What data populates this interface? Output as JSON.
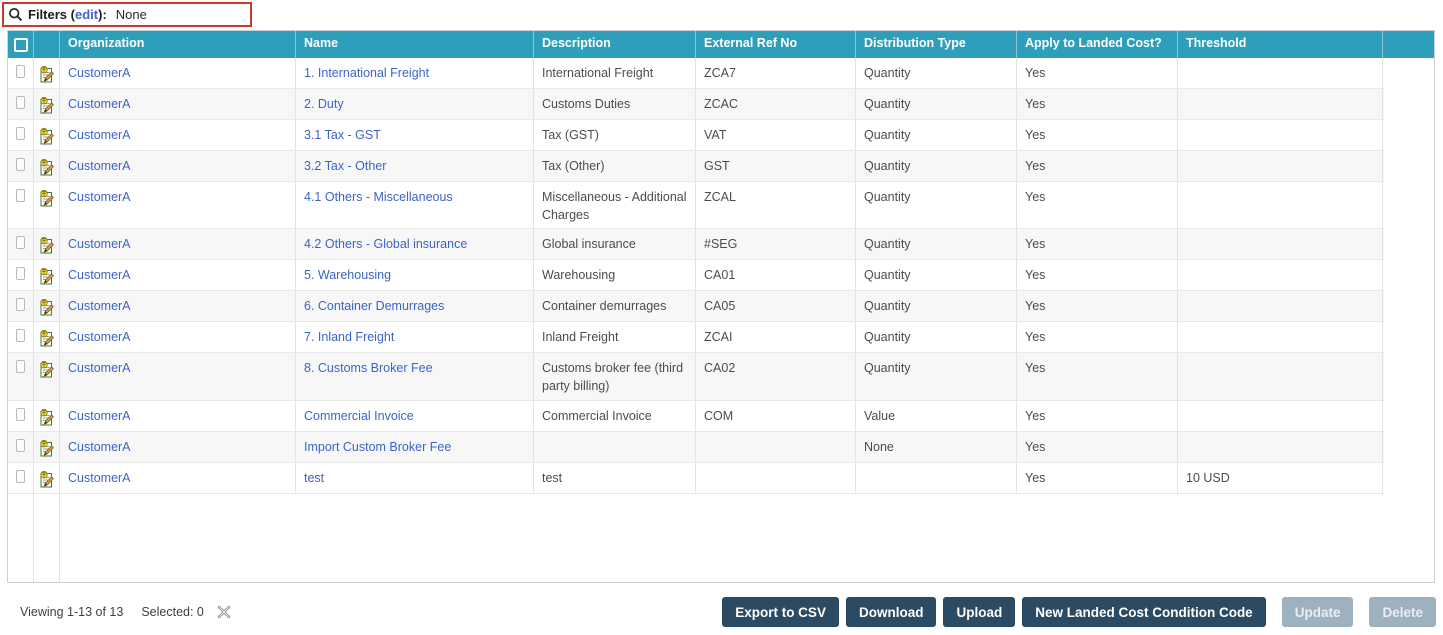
{
  "filter_bar": {
    "label": "Filters",
    "edit_link": "edit",
    "colon": ":",
    "value": "None"
  },
  "table": {
    "headers": {
      "organization": "Organization",
      "name": "Name",
      "description": "Description",
      "external_ref_no": "External Ref No",
      "distribution_type": "Distribution Type",
      "apply_to_landed_cost": "Apply to Landed Cost?",
      "threshold": "Threshold"
    },
    "rows": [
      {
        "organization": "CustomerA",
        "name": "1. International Freight",
        "description": "International Freight",
        "external_ref_no": "ZCA7",
        "distribution_type": "Quantity",
        "apply_to_landed_cost": "Yes",
        "threshold": ""
      },
      {
        "organization": "CustomerA",
        "name": "2. Duty",
        "description": "Customs Duties",
        "external_ref_no": "ZCAC",
        "distribution_type": "Quantity",
        "apply_to_landed_cost": "Yes",
        "threshold": ""
      },
      {
        "organization": "CustomerA",
        "name": "3.1 Tax - GST",
        "description": "Tax (GST)",
        "external_ref_no": "VAT",
        "distribution_type": "Quantity",
        "apply_to_landed_cost": "Yes",
        "threshold": ""
      },
      {
        "organization": "CustomerA",
        "name": "3.2 Tax - Other",
        "description": "Tax (Other)",
        "external_ref_no": "GST",
        "distribution_type": "Quantity",
        "apply_to_landed_cost": "Yes",
        "threshold": ""
      },
      {
        "organization": "CustomerA",
        "name": "4.1 Others - Miscellaneous",
        "description": "Miscellaneous - Additional Charges",
        "external_ref_no": "ZCAL",
        "distribution_type": "Quantity",
        "apply_to_landed_cost": "Yes",
        "threshold": ""
      },
      {
        "organization": "CustomerA",
        "name": "4.2 Others - Global insurance",
        "description": "Global insurance",
        "external_ref_no": "#SEG",
        "distribution_type": "Quantity",
        "apply_to_landed_cost": "Yes",
        "threshold": ""
      },
      {
        "organization": "CustomerA",
        "name": "5. Warehousing",
        "description": "Warehousing",
        "external_ref_no": "CA01",
        "distribution_type": "Quantity",
        "apply_to_landed_cost": "Yes",
        "threshold": ""
      },
      {
        "organization": "CustomerA",
        "name": "6. Container Demurrages",
        "description": "Container demurrages",
        "external_ref_no": "CA05",
        "distribution_type": "Quantity",
        "apply_to_landed_cost": "Yes",
        "threshold": ""
      },
      {
        "organization": "CustomerA",
        "name": "7. Inland Freight",
        "description": "Inland Freight",
        "external_ref_no": "ZCAI",
        "distribution_type": "Quantity",
        "apply_to_landed_cost": "Yes",
        "threshold": ""
      },
      {
        "organization": "CustomerA",
        "name": "8. Customs Broker Fee",
        "description": "Customs broker fee (third party billing)",
        "external_ref_no": "CA02",
        "distribution_type": "Quantity",
        "apply_to_landed_cost": "Yes",
        "threshold": ""
      },
      {
        "organization": "CustomerA",
        "name": "Commercial Invoice",
        "description": "Commercial Invoice",
        "external_ref_no": "COM",
        "distribution_type": "Value",
        "apply_to_landed_cost": "Yes",
        "threshold": ""
      },
      {
        "organization": "CustomerA",
        "name": "Import Custom Broker Fee",
        "description": "",
        "external_ref_no": "",
        "distribution_type": "None",
        "apply_to_landed_cost": "Yes",
        "threshold": ""
      },
      {
        "organization": "CustomerA",
        "name": "test",
        "description": "test",
        "external_ref_no": "",
        "distribution_type": "",
        "apply_to_landed_cost": "Yes",
        "threshold": "10 USD"
      }
    ]
  },
  "footer": {
    "viewing": "Viewing 1-13 of 13",
    "selected": "Selected: 0"
  },
  "action_buttons": [
    {
      "label": "Export to CSV",
      "enabled": true
    },
    {
      "label": "Download",
      "enabled": true
    },
    {
      "label": "Upload",
      "enabled": true
    },
    {
      "label": "New Landed Cost Condition Code",
      "enabled": true
    },
    {
      "label": "Update",
      "enabled": false
    },
    {
      "label": "Delete",
      "enabled": false
    }
  ],
  "colors": {
    "header_bg": "#2D9FBA",
    "link": "#3C64C8",
    "button_bg": "#2B4A63",
    "button_disabled_bg": "#9DB1BE",
    "filter_border": "#C63B2C"
  }
}
